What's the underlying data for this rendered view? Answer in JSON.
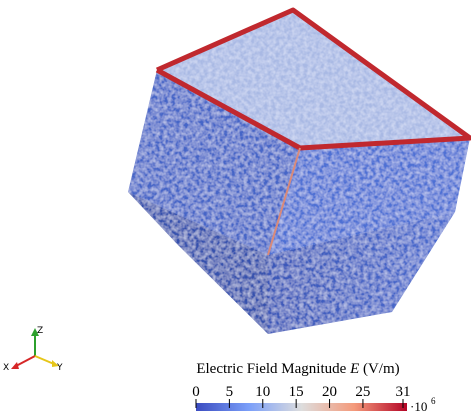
{
  "colorbar": {
    "title_parts": [
      "Electric Field Magnitude ",
      "E",
      " (V/m)"
    ],
    "range": [
      0,
      31
    ],
    "ticks": [
      0,
      5,
      10,
      15,
      20,
      25,
      31
    ],
    "multiplier": "·10",
    "exponent": "6"
  },
  "axes_triad": {
    "z": "Z",
    "x": "X",
    "y": "Y"
  }
}
